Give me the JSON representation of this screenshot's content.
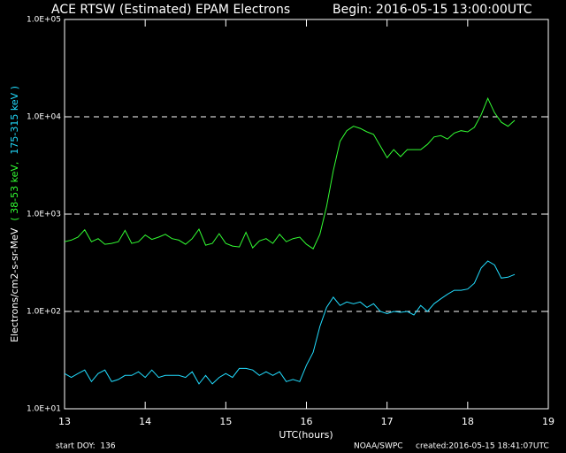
{
  "chart_data": {
    "type": "line",
    "title": "ACE RTSW (Estimated) EPAM Electrons",
    "subtitle": "Begin: 2016-05-15 13:00:00UTC",
    "y_label": [
      "Electrons/cm2-s-sr-MeV",
      "( 38-53 keV,",
      "175-315 keV )"
    ],
    "x_label": "UTC(hours)",
    "footer": {
      "start": "start DOY:  136",
      "source": "NOAA/SWPC",
      "created": "created:2016-05-15 18:41:07UTC"
    },
    "log_y": true,
    "grid": true,
    "xlim": [
      13,
      19
    ],
    "xticks": [
      13,
      14,
      15,
      16,
      17,
      18,
      19
    ],
    "ylim": [
      10,
      100000
    ],
    "yticks": [
      {
        "value": 10,
        "label": "1.0E+01"
      },
      {
        "value": 100,
        "label": "1.0E+02"
      },
      {
        "value": 1000,
        "label": "1.0E+03"
      },
      {
        "value": 10000,
        "label": "1.0E+04"
      },
      {
        "value": 100000,
        "label": "1.0E+05"
      }
    ],
    "x": [
      13.0,
      13.083,
      13.167,
      13.25,
      13.333,
      13.417,
      13.5,
      13.583,
      13.667,
      13.75,
      13.833,
      13.917,
      14.0,
      14.083,
      14.167,
      14.25,
      14.333,
      14.417,
      14.5,
      14.583,
      14.667,
      14.75,
      14.833,
      14.917,
      15.0,
      15.083,
      15.167,
      15.25,
      15.333,
      15.417,
      15.5,
      15.583,
      15.667,
      15.75,
      15.833,
      15.917,
      16.0,
      16.083,
      16.167,
      16.25,
      16.333,
      16.417,
      16.5,
      16.583,
      16.667,
      16.75,
      16.833,
      16.917,
      17.0,
      17.083,
      17.167,
      17.25,
      17.333,
      17.417,
      17.5,
      17.583,
      17.667,
      17.75,
      17.833,
      17.917,
      18.0,
      18.083,
      18.167,
      18.25,
      18.333,
      18.417,
      18.5,
      18.583
    ],
    "series": [
      {
        "name": "38-53 keV",
        "color": "#33ff33",
        "values": [
          520,
          540,
          580,
          690,
          520,
          560,
          490,
          500,
          520,
          680,
          500,
          520,
          610,
          550,
          580,
          620,
          560,
          540,
          490,
          560,
          700,
          480,
          500,
          630,
          500,
          470,
          460,
          650,
          450,
          530,
          560,
          500,
          620,
          520,
          560,
          580,
          490,
          440,
          620,
          1200,
          2800,
          5600,
          7200,
          8000,
          7600,
          7000,
          6600,
          5000,
          3800,
          4600,
          3900,
          4600,
          4600,
          4600,
          5200,
          6200,
          6400,
          5900,
          6800,
          7200,
          7000,
          7800,
          10500,
          15500,
          11000,
          8800,
          8000,
          9200
        ]
      },
      {
        "name": "175-315 keV",
        "color": "#22ddff",
        "values": [
          23,
          21,
          23,
          25,
          19,
          23,
          25,
          19,
          20,
          22,
          22,
          24,
          21,
          25,
          21,
          22,
          22,
          22,
          21,
          24,
          18,
          22,
          18,
          21,
          23,
          21,
          26,
          26,
          25,
          22,
          24,
          22,
          24,
          19,
          20,
          19,
          28,
          38,
          70,
          110,
          140,
          115,
          125,
          120,
          125,
          110,
          120,
          100,
          95,
          100,
          98,
          100,
          92,
          115,
          100,
          120,
          135,
          150,
          165,
          165,
          170,
          195,
          280,
          330,
          300,
          220,
          225,
          240
        ]
      }
    ]
  }
}
